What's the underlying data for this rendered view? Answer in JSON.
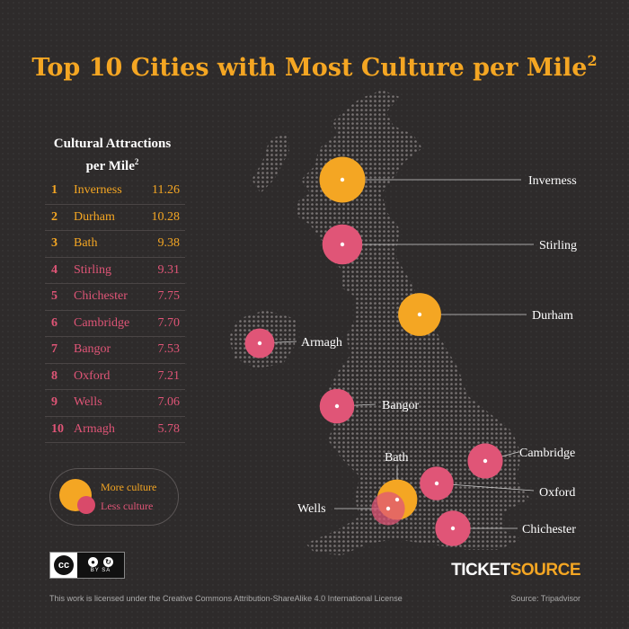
{
  "title": "Top 10 Cities with Most Culture per Mile",
  "title_sup": "2",
  "table": {
    "heading_line1": "Cultural Attractions",
    "heading_line2": "per Mile",
    "heading_sup": "2",
    "rows": [
      {
        "rank": "1",
        "city": "Inverness",
        "value": "11.26",
        "culture": "more"
      },
      {
        "rank": "2",
        "city": "Durham",
        "value": "10.28",
        "culture": "more"
      },
      {
        "rank": "3",
        "city": "Bath",
        "value": "9.38",
        "culture": "more"
      },
      {
        "rank": "4",
        "city": "Stirling",
        "value": "9.31",
        "culture": "less"
      },
      {
        "rank": "5",
        "city": "Chichester",
        "value": "7.75",
        "culture": "less"
      },
      {
        "rank": "6",
        "city": "Cambridge",
        "value": "7.70",
        "culture": "less"
      },
      {
        "rank": "7",
        "city": "Bangor",
        "value": "7.53",
        "culture": "less"
      },
      {
        "rank": "8",
        "city": "Oxford",
        "value": "7.21",
        "culture": "less"
      },
      {
        "rank": "9",
        "city": "Wells",
        "value": "7.06",
        "culture": "less"
      },
      {
        "rank": "10",
        "city": "Armagh",
        "value": "5.78",
        "culture": "less"
      }
    ]
  },
  "legend": {
    "more_label": "More culture",
    "less_label": "Less culture"
  },
  "colors": {
    "more": "#f4a623",
    "less": "#e05577",
    "background": "#2e2b2b"
  },
  "license_badge": {
    "cc": "cc",
    "by": "BY",
    "sa": "SA"
  },
  "license_text": "This work is licensed under the Creative Commons Attribution-ShareAlike 4.0 International License",
  "logo": {
    "part1": "TICKET",
    "part2": "SOURCE"
  },
  "source_text": "Source: Tripadvisor",
  "map_labels": {
    "inverness": "Inverness",
    "stirling": "Stirling",
    "durham": "Durham",
    "armagh": "Armagh",
    "bangor": "Bangor",
    "cambridge": "Cambridge",
    "bath": "Bath",
    "oxford": "Oxford",
    "wells": "Wells",
    "chichester": "Chichester"
  }
}
